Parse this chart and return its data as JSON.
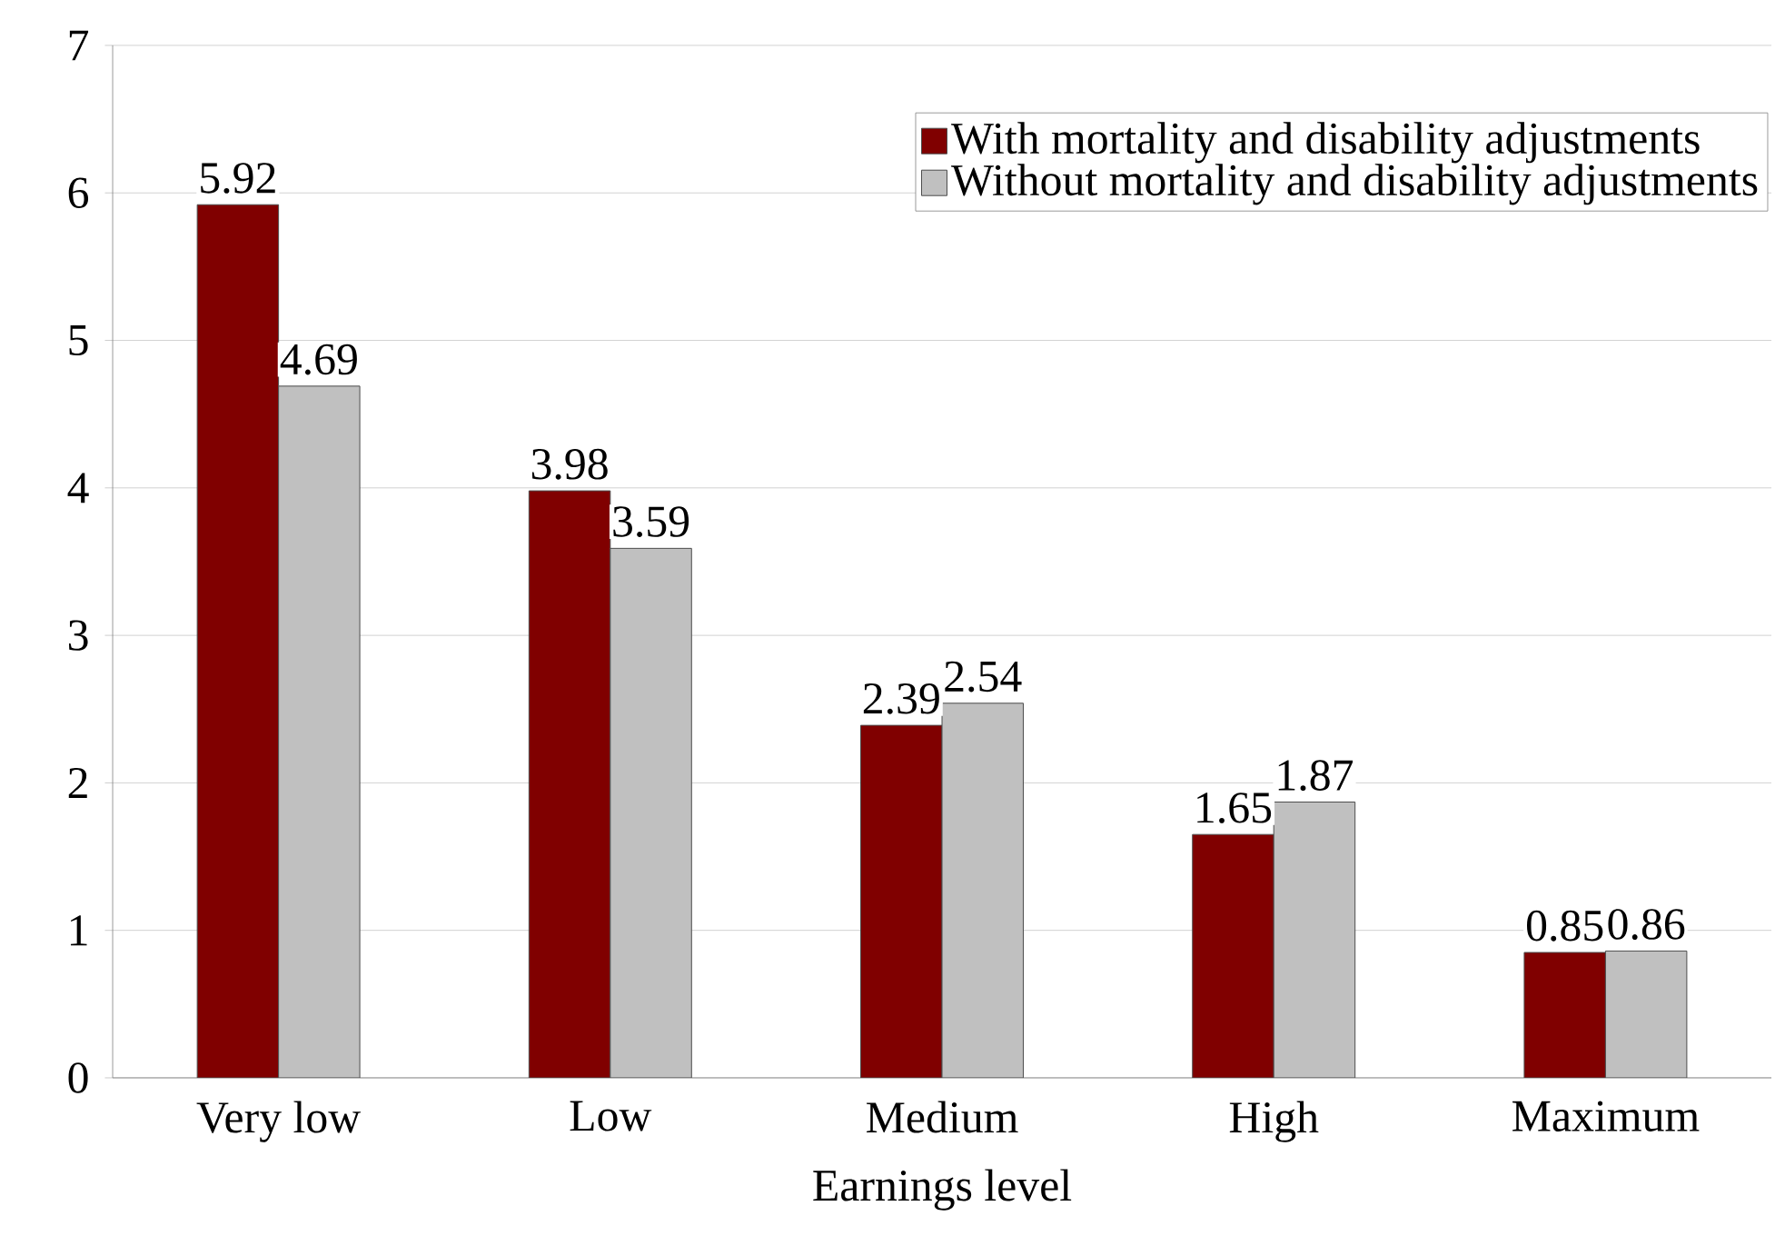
{
  "chart_data": {
    "type": "bar",
    "xlabel": "Earnings level",
    "categories": [
      "Very low",
      "Low",
      "Medium",
      "High",
      "Maximum"
    ],
    "series": [
      {
        "name": "With mortality and disability adjustments",
        "color": "#800000",
        "values": [
          5.92,
          3.98,
          2.39,
          1.65,
          0.85
        ]
      },
      {
        "name": "Without mortality and disability adjustments",
        "color": "#c0c0c0",
        "values": [
          4.69,
          3.59,
          2.54,
          1.87,
          0.86
        ]
      }
    ],
    "ylim": [
      0,
      7
    ],
    "yticks": [
      0,
      1,
      2,
      3,
      4,
      5,
      6,
      7
    ],
    "grid": "y",
    "legend": "top right",
    "data_labels": true
  }
}
